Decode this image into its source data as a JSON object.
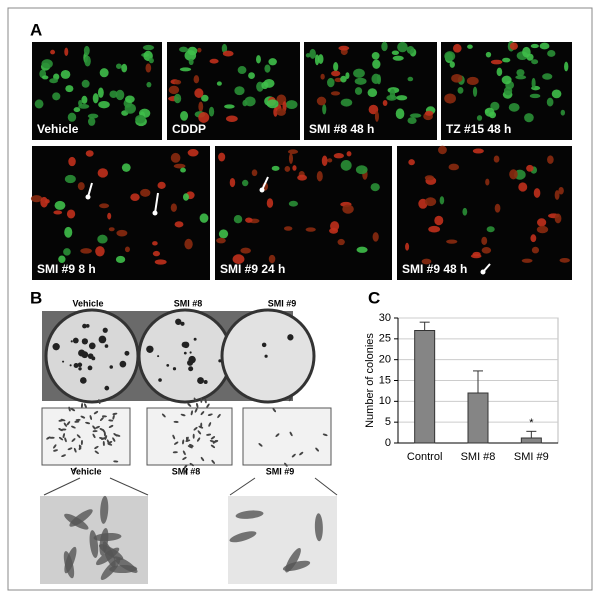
{
  "panel_a": {
    "label": "A",
    "images": [
      "Vehicle",
      "CDDP",
      "SMI #8  48 h",
      "TZ #15  48 h",
      "SMI #9  8 h",
      "SMI #9  24 h",
      "SMI #9  48 h"
    ]
  },
  "panel_b": {
    "label": "B",
    "plate_labels": [
      "Vehicle",
      "SMI #8",
      "SMI #9"
    ],
    "zoom_labels": [
      "Vehicle",
      "SMI #8",
      "SMI #9"
    ]
  },
  "chart_data": {
    "type": "bar",
    "label": "C",
    "y_label": "Number of colonies",
    "categories": [
      "Control",
      "SMI #8",
      "SMI #9"
    ],
    "values": [
      27,
      12,
      1.2
    ],
    "errors": [
      2,
      5.3,
      1.6
    ],
    "color": "#858585",
    "ylim": [
      0,
      30
    ],
    "yticks": [
      0,
      5,
      10,
      15,
      20,
      25,
      30
    ],
    "grid": true,
    "annotation": "*"
  }
}
